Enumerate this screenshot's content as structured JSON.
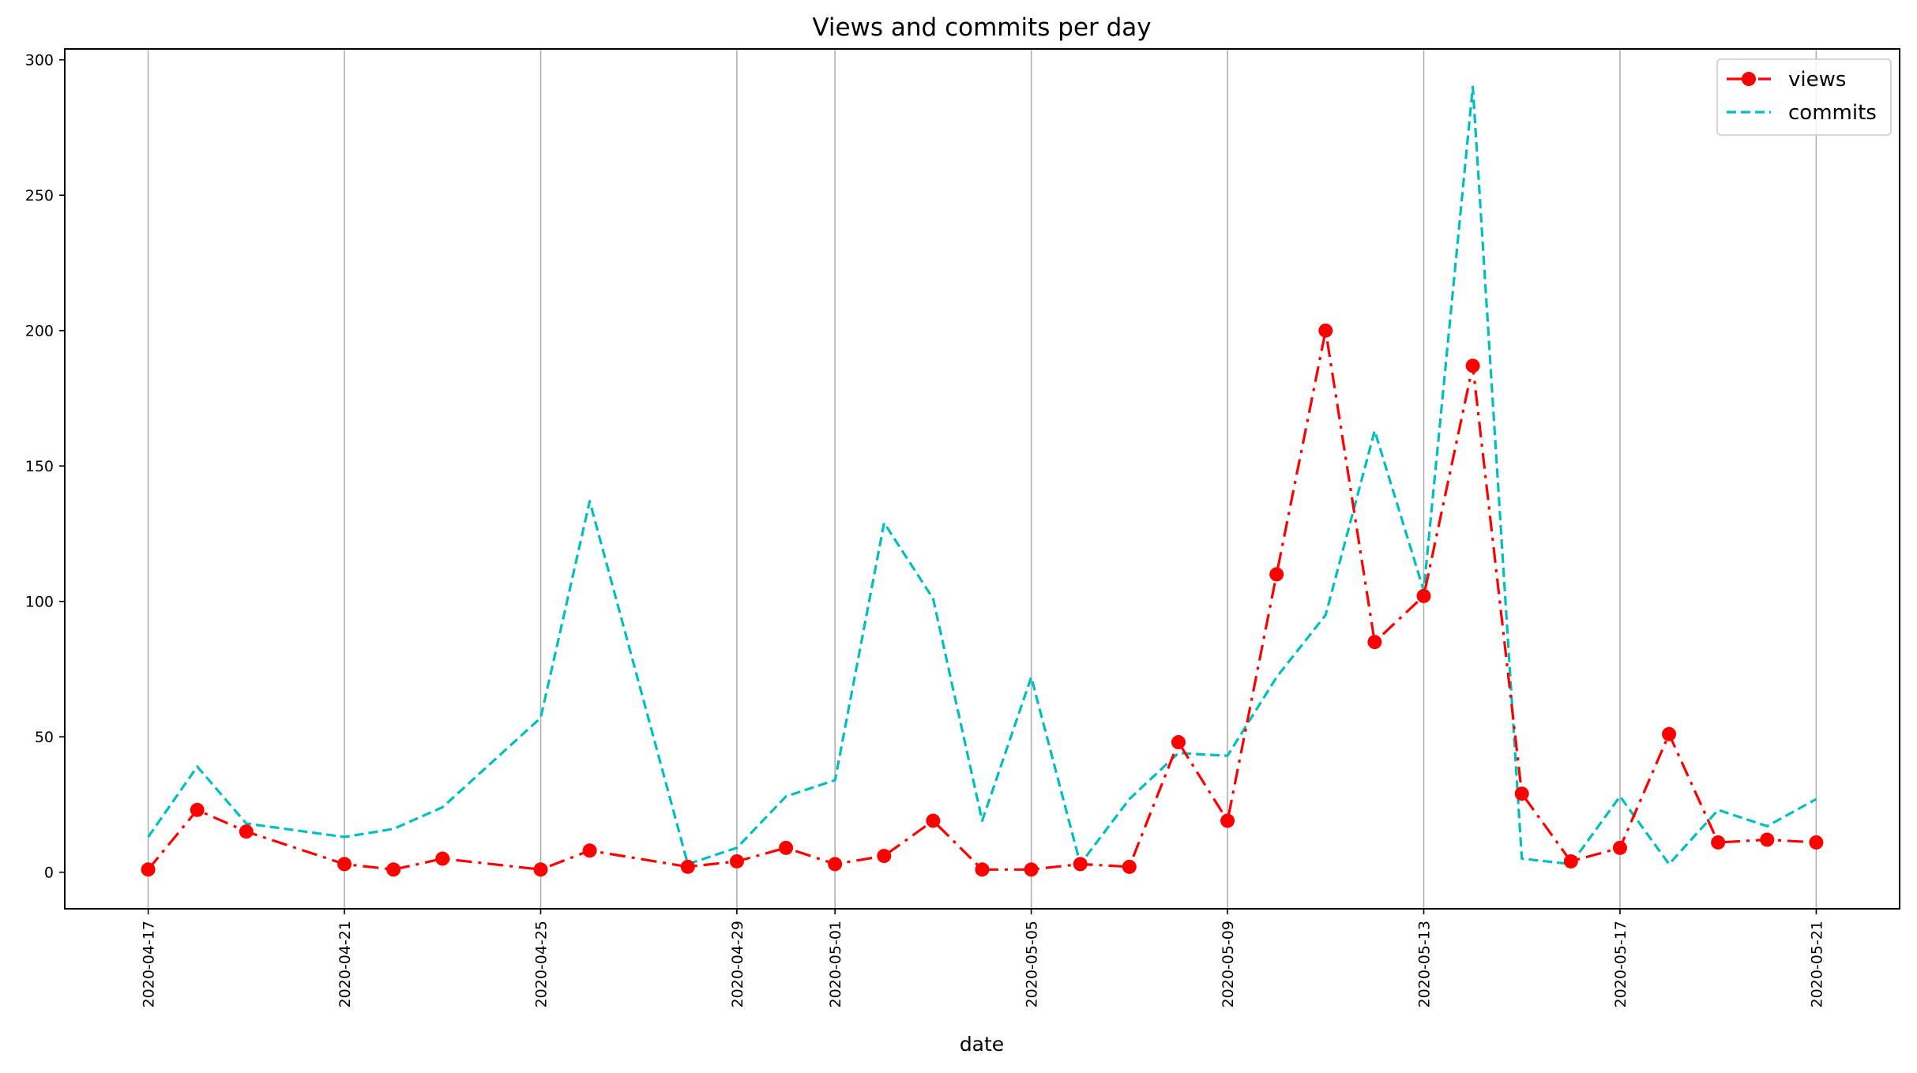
{
  "chart_data": {
    "type": "line",
    "title": "Views and commits per day",
    "xlabel": "date",
    "ylabel": "",
    "ylim": [
      -13.5,
      304
    ],
    "y_ticks": [
      0,
      50,
      100,
      150,
      200,
      250,
      300
    ],
    "x_range": [
      "2020-04-15 07:12",
      "2020-05-22 16:48"
    ],
    "x_ticks": [
      "2020-04-17",
      "2020-04-21",
      "2020-04-25",
      "2020-04-29",
      "2020-05-01",
      "2020-05-05",
      "2020-05-09",
      "2020-05-13",
      "2020-05-17",
      "2020-05-21"
    ],
    "grid": "x",
    "legend_position": "upper right",
    "series": [
      {
        "name": "views",
        "color": "#ff0000",
        "linestyle": "dash-dot",
        "marker": "circle",
        "points": [
          [
            "2020-04-17",
            1
          ],
          [
            "2020-04-18",
            23
          ],
          [
            "2020-04-19",
            15
          ],
          [
            "2020-04-21",
            3
          ],
          [
            "2020-04-22",
            1
          ],
          [
            "2020-04-23",
            5
          ],
          [
            "2020-04-25",
            1
          ],
          [
            "2020-04-26",
            8
          ],
          [
            "2020-04-28",
            2
          ],
          [
            "2020-04-29",
            4
          ],
          [
            "2020-04-30",
            9
          ],
          [
            "2020-05-01",
            3
          ],
          [
            "2020-05-02",
            6
          ],
          [
            "2020-05-03",
            19
          ],
          [
            "2020-05-04",
            1
          ],
          [
            "2020-05-05",
            1
          ],
          [
            "2020-05-06",
            3
          ],
          [
            "2020-05-07",
            2
          ],
          [
            "2020-05-08",
            48
          ],
          [
            "2020-05-09",
            19
          ],
          [
            "2020-05-10",
            110
          ],
          [
            "2020-05-11",
            200
          ],
          [
            "2020-05-12",
            85
          ],
          [
            "2020-05-13",
            102
          ],
          [
            "2020-05-14",
            187
          ],
          [
            "2020-05-15",
            29
          ],
          [
            "2020-05-16",
            4
          ],
          [
            "2020-05-17",
            9
          ],
          [
            "2020-05-18",
            51
          ],
          [
            "2020-05-19",
            11
          ],
          [
            "2020-05-20",
            12
          ],
          [
            "2020-05-21",
            11
          ]
        ]
      },
      {
        "name": "commits",
        "color": "#00bfbf",
        "linestyle": "dashed",
        "marker": "none",
        "points": [
          [
            "2020-04-17",
            13
          ],
          [
            "2020-04-18",
            39
          ],
          [
            "2020-04-19",
            18
          ],
          [
            "2020-04-21",
            13
          ],
          [
            "2020-04-22",
            16
          ],
          [
            "2020-04-23",
            24
          ],
          [
            "2020-04-25",
            57
          ],
          [
            "2020-04-26",
            137
          ],
          [
            "2020-04-28",
            3
          ],
          [
            "2020-04-29",
            9
          ],
          [
            "2020-04-30",
            28
          ],
          [
            "2020-05-01",
            34
          ],
          [
            "2020-05-02",
            129
          ],
          [
            "2020-05-03",
            101
          ],
          [
            "2020-05-04",
            19
          ],
          [
            "2020-05-05",
            72
          ],
          [
            "2020-05-06",
            3
          ],
          [
            "2020-05-07",
            27
          ],
          [
            "2020-05-08",
            44
          ],
          [
            "2020-05-09",
            43
          ],
          [
            "2020-05-10",
            72
          ],
          [
            "2020-05-11",
            95
          ],
          [
            "2020-05-12",
            163
          ],
          [
            "2020-05-13",
            104
          ],
          [
            "2020-05-14",
            290
          ],
          [
            "2020-05-15",
            5
          ],
          [
            "2020-05-16",
            3
          ],
          [
            "2020-05-17",
            28
          ],
          [
            "2020-05-18",
            3
          ],
          [
            "2020-05-19",
            23
          ],
          [
            "2020-05-20",
            17
          ],
          [
            "2020-05-21",
            27
          ]
        ]
      }
    ]
  }
}
